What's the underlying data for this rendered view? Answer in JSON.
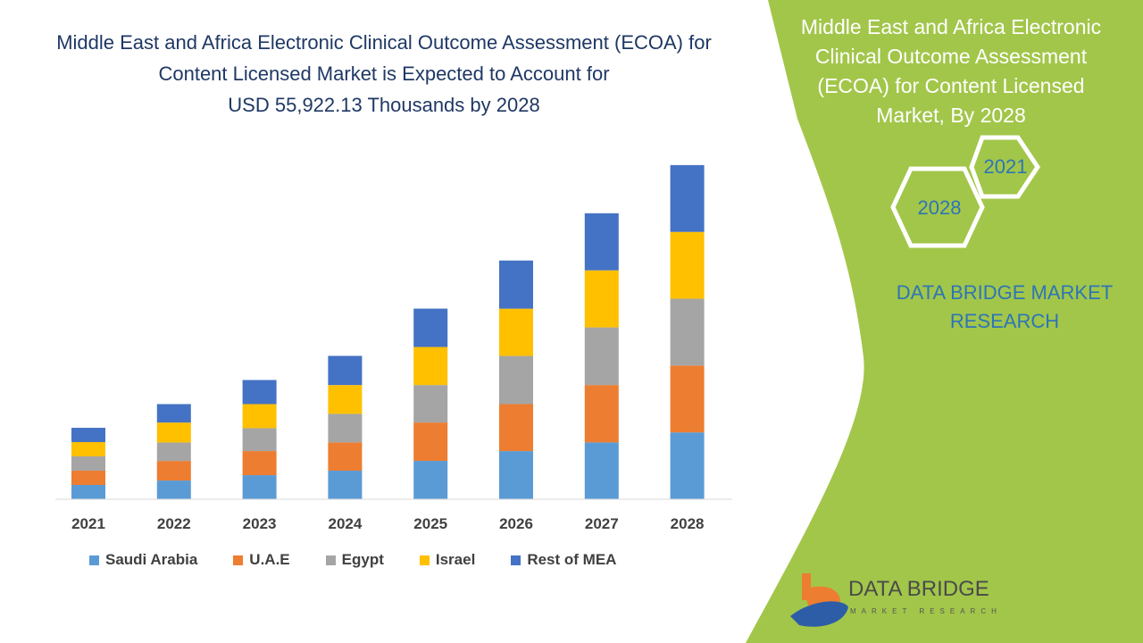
{
  "header": {
    "title_line1": "Middle East and Africa Electronic Clinical Outcome Assessment (ECOA) for",
    "title_line2": "Content Licensed Market is Expected to Account for",
    "title_line3": "USD 55,922.13 Thousands  by 2028"
  },
  "side_panel": {
    "title_line1": "Middle East and Africa Electronic",
    "title_line2": "Clinical Outcome Assessment",
    "title_line3": "(ECOA) for Content Licensed",
    "title_line4": "Market, By 2028",
    "hex_2021": "2021",
    "hex_2028": "2028",
    "brand_line1": "DATA BRIDGE MARKET",
    "brand_line2": "RESEARCH",
    "logo_text": "DATA BRIDGE",
    "logo_sub": "MARKET RESEARCH",
    "green": "#a2c64a"
  },
  "chart_data": {
    "type": "bar",
    "stacked": true,
    "title": "",
    "xlabel": "",
    "ylabel": "",
    "grid": false,
    "legend_position": "bottom",
    "categories": [
      "2021",
      "2022",
      "2023",
      "2024",
      "2025",
      "2026",
      "2027",
      "2028"
    ],
    "series": [
      {
        "name": "Saudi Arabia",
        "color": "#5b9bd5",
        "values": [
          2390,
          3130,
          4030,
          4780,
          6420,
          8060,
          9510,
          11184
        ]
      },
      {
        "name": "U.A.E",
        "color": "#ed7d31",
        "values": [
          2390,
          3280,
          4030,
          4730,
          6420,
          7860,
          9600,
          11184
        ]
      },
      {
        "name": "Egypt",
        "color": "#a5a5a5",
        "values": [
          2390,
          3090,
          3830,
          4780,
          6270,
          8060,
          9650,
          11185
        ]
      },
      {
        "name": "Israel",
        "color": "#ffc000",
        "values": [
          2390,
          3330,
          4030,
          4820,
          6370,
          7910,
          9550,
          11184
        ]
      },
      {
        "name": "Rest of MEA",
        "color": "#4472c4",
        "values": [
          2390,
          3090,
          4030,
          4880,
          6420,
          8060,
          9550,
          11185
        ]
      }
    ]
  }
}
